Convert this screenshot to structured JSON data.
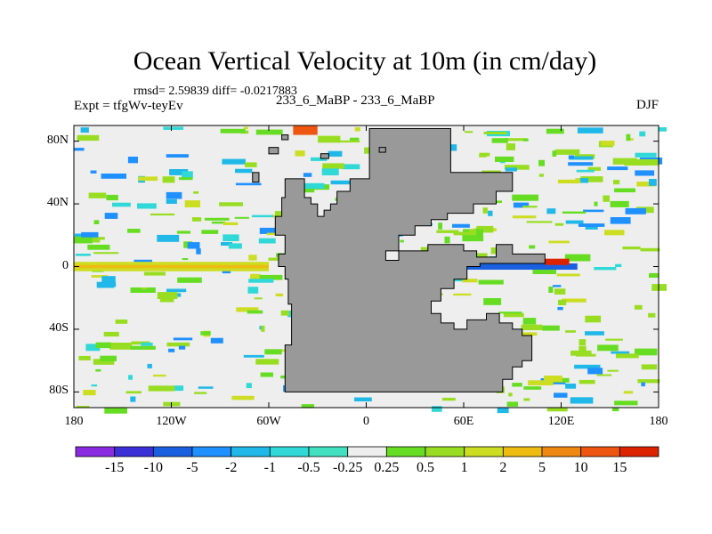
{
  "chart_data": {
    "type": "heatmap",
    "title": "Ocean Vertical Velocity at 10m (in cm/day)",
    "stats_line": "rmsd= 2.59839  diff= -0.0217883",
    "experiment": "Expt = tfgWv-teyEv",
    "comparison": "233_6_MaBP - 233_6_MaBP",
    "season": "DJF",
    "x_ticks": [
      "180",
      "120W",
      "60W",
      "0",
      "60E",
      "120E",
      "180"
    ],
    "x_tick_values": [
      -180,
      -120,
      -60,
      0,
      60,
      120,
      180
    ],
    "y_ticks": [
      "80N",
      "40N",
      "0",
      "40S",
      "80S"
    ],
    "y_tick_values": [
      80,
      40,
      0,
      -40,
      -80
    ],
    "xlim": [
      -180,
      180
    ],
    "ylim": [
      -90,
      90
    ],
    "colorbar": {
      "labels": [
        "-15",
        "-10",
        "-5",
        "-2",
        "-1",
        "-0.5",
        "-0.25",
        "0.25",
        "0.5",
        "1",
        "2",
        "5",
        "10",
        "15"
      ],
      "colors": [
        "#8a2be2",
        "#3b2fd8",
        "#1a5fe0",
        "#1e90ff",
        "#20b8e8",
        "#30d8d8",
        "#40e0c0",
        "#eeeeee",
        "#66dd22",
        "#99dd22",
        "#ccdd22",
        "#eebb11",
        "#ee8811",
        "#ee5511",
        "#dd2200"
      ]
    },
    "land": {
      "label": "land mask",
      "color": "#999999"
    }
  }
}
